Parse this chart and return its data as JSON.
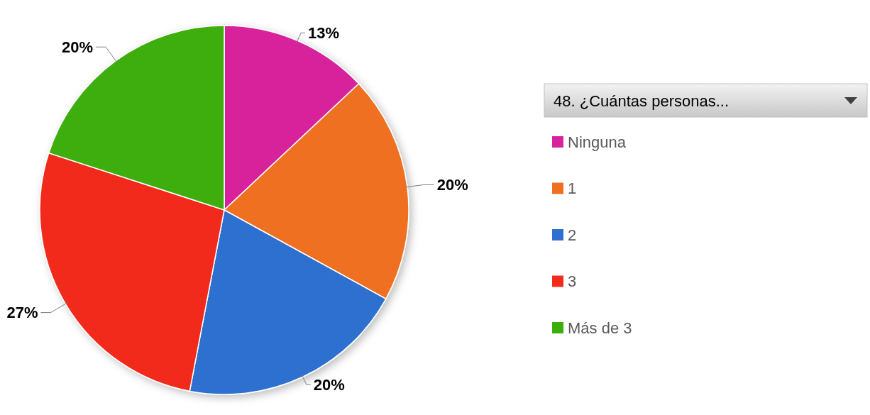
{
  "chart_data": {
    "type": "pie",
    "legend_title": "48. ¿Cuántas personas...",
    "categories": [
      "Ninguna",
      "1",
      "2",
      "3",
      "Más de 3"
    ],
    "values": [
      13,
      20,
      20,
      27,
      20
    ],
    "colors": [
      "#d8249c",
      "#f07022",
      "#2f6fd0",
      "#f22b1c",
      "#3cae0c"
    ],
    "value_labels": [
      "13%",
      "20%",
      "20%",
      "27%",
      "20%"
    ],
    "legend": "right"
  }
}
